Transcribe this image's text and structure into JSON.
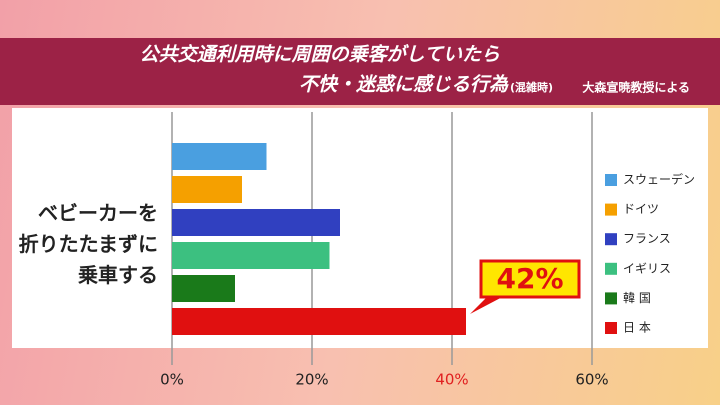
{
  "chart_data": {
    "type": "bar",
    "orientation": "horizontal",
    "title_lines": [
      "公共交通利用時に周囲の乗客がしていたら",
      "不快・迷惑に感じる行為"
    ],
    "title_note": "(混雑時)",
    "source": "大森宣暁教授による",
    "categories": [
      "ベビーカーを\n折りたたまずに\n乗車する"
    ],
    "series": [
      {
        "name": "スウェーデン",
        "color": "#4a9fe0",
        "values": [
          13.5
        ]
      },
      {
        "name": "ドイツ",
        "color": "#f5a000",
        "values": [
          10
        ]
      },
      {
        "name": "フランス",
        "color": "#3040c0",
        "values": [
          24
        ]
      },
      {
        "name": "イギリス",
        "color": "#3cc080",
        "values": [
          22.5
        ]
      },
      {
        "name": "韓 国",
        "color": "#1a7a1a",
        "values": [
          9
        ]
      },
      {
        "name": "日 本",
        "color": "#e01010",
        "values": [
          42
        ],
        "value_labels": [
          "42%"
        ]
      }
    ],
    "xlim": [
      0,
      60
    ],
    "xticks": [
      {
        "value": 0,
        "label": "0%"
      },
      {
        "value": 20,
        "label": "20%"
      },
      {
        "value": 40,
        "label": "40%",
        "color": "#e02020"
      },
      {
        "value": 60,
        "label": "60%"
      }
    ],
    "grid": true,
    "legend": "right"
  }
}
